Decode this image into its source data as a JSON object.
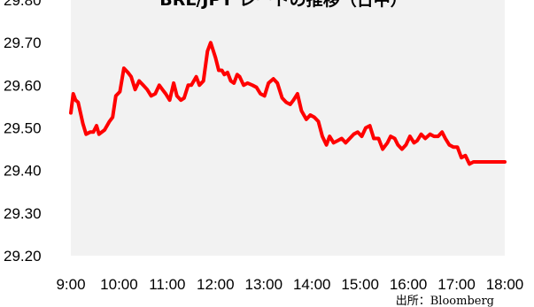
{
  "chart_data": {
    "type": "line",
    "title": "BRL/JPY レートの推移（日中）",
    "source": "出所：Bloomberg",
    "xlabel": "",
    "ylabel": "",
    "x_ticks": [
      "9:00",
      "10:00",
      "11:00",
      "12:00",
      "13:00",
      "14:00",
      "15:00",
      "16:00",
      "17:00",
      "18:00"
    ],
    "xlim": [
      "9:00",
      "18:00"
    ],
    "ylim": [
      29.2,
      29.8
    ],
    "y_ticks": [
      "29.20",
      "29.30",
      "29.40",
      "29.50",
      "29.60",
      "29.70",
      "29.80"
    ],
    "grid": false,
    "legend": "none",
    "colors": {
      "line": "#ff0000",
      "plot_background": "#f2f2f2"
    },
    "series": [
      {
        "x": [
          "9:00",
          "9:03",
          "9:06",
          "9:09",
          "9:12",
          "9:15",
          "9:19",
          "9:24",
          "9:28",
          "9:32",
          "9:35",
          "9:42",
          "9:48",
          "9:52",
          "9:56",
          "10:01",
          "10:06",
          "10:11",
          "10:15",
          "10:20",
          "10:25",
          "10:30",
          "10:35",
          "10:40",
          "10:45",
          "10:50",
          "10:54",
          "10:58",
          "11:03",
          "11:08",
          "11:12",
          "11:17",
          "11:21",
          "11:26",
          "11:30",
          "11:36",
          "11:40",
          "11:45",
          "11:50",
          "11:54",
          "12:00",
          "12:04",
          "12:08",
          "12:11",
          "12:15",
          "12:19",
          "12:23",
          "12:27",
          "12:30",
          "12:35",
          "12:40",
          "12:46",
          "12:51",
          "12:56",
          "13:01",
          "13:06",
          "13:12",
          "13:17",
          "13:23",
          "13:28",
          "13:33",
          "13:37",
          "13:42",
          "13:47",
          "13:53",
          "13:58",
          "14:03",
          "14:08",
          "14:13",
          "14:18",
          "14:22",
          "14:27",
          "14:32",
          "14:37",
          "14:42",
          "14:47",
          "14:52",
          "14:57",
          "15:02",
          "15:07",
          "15:12",
          "15:17",
          "15:23",
          "15:28",
          "15:34",
          "15:38",
          "15:43",
          "15:47",
          "15:52",
          "15:57",
          "16:02",
          "16:07",
          "16:11",
          "16:16",
          "16:21",
          "16:27",
          "16:32",
          "16:37",
          "16:42",
          "16:46",
          "16:51",
          "16:56",
          "17:01",
          "17:06",
          "17:11",
          "17:16",
          "17:21",
          "17:27",
          "17:32",
          "17:37",
          "17:42",
          "17:47",
          "17:52",
          "17:57",
          "18:00"
        ],
        "values": [
          29.535,
          29.58,
          29.565,
          29.56,
          29.535,
          29.51,
          29.485,
          29.49,
          29.49,
          29.505,
          29.485,
          29.495,
          29.515,
          29.525,
          29.575,
          29.585,
          29.64,
          29.63,
          29.62,
          29.59,
          29.61,
          29.6,
          29.59,
          29.575,
          29.58,
          29.6,
          29.59,
          29.58,
          29.565,
          29.605,
          29.575,
          29.565,
          29.57,
          29.6,
          29.6,
          29.62,
          29.6,
          29.61,
          29.68,
          29.7,
          29.665,
          29.635,
          29.635,
          29.625,
          29.63,
          29.61,
          29.605,
          29.625,
          29.62,
          29.6,
          29.605,
          29.6,
          29.595,
          29.58,
          29.575,
          29.605,
          29.615,
          29.605,
          29.57,
          29.56,
          29.555,
          29.565,
          29.58,
          29.54,
          29.52,
          29.53,
          29.525,
          29.515,
          29.48,
          29.46,
          29.48,
          29.465,
          29.47,
          29.475,
          29.465,
          29.475,
          29.485,
          29.49,
          29.48,
          29.5,
          29.505,
          29.475,
          29.475,
          29.45,
          29.465,
          29.48,
          29.475,
          29.46,
          29.45,
          29.46,
          29.48,
          29.465,
          29.47,
          29.485,
          29.475,
          29.485,
          29.48,
          29.48,
          29.49,
          29.475,
          29.46,
          29.455,
          29.455,
          29.43,
          29.435,
          29.415,
          29.42,
          29.42,
          29.42,
          29.42,
          29.42,
          29.42,
          29.42,
          29.42,
          29.42
        ]
      }
    ]
  }
}
